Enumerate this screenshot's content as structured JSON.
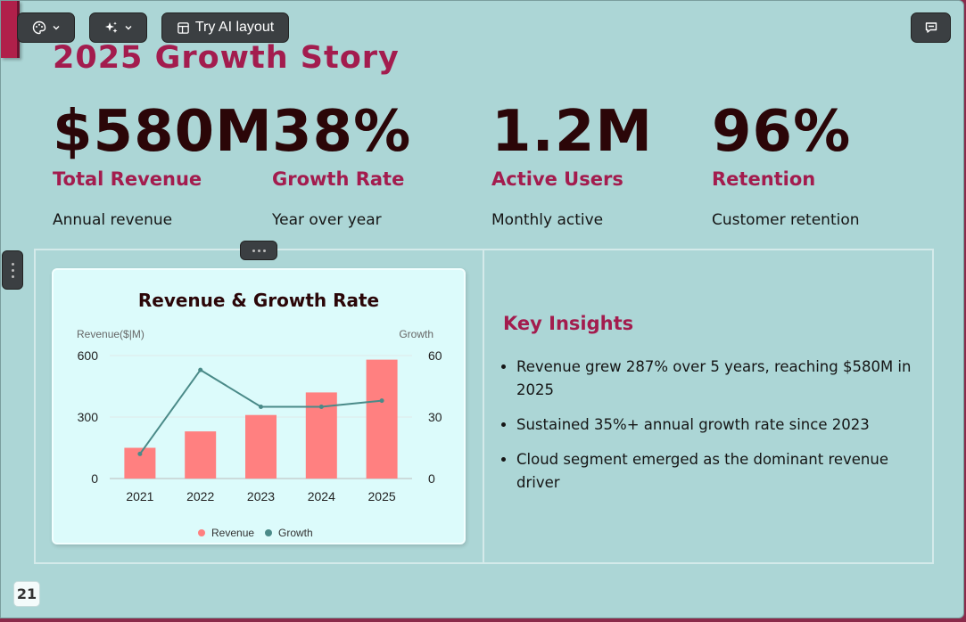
{
  "toolbar": {
    "theme_icon": "palette-icon",
    "ai_icon": "sparkles-icon",
    "layout_label": "Try AI layout",
    "layout_icon": "layout-icon",
    "comment_icon": "comment-icon"
  },
  "slide": {
    "title": "2025 Growth Story",
    "page_number": "21"
  },
  "kpis": [
    {
      "value": "$580M",
      "label": "Total Revenue",
      "sub": "Annual revenue"
    },
    {
      "value": "38%",
      "label": "Growth Rate",
      "sub": "Year over year"
    },
    {
      "value": "1.2M",
      "label": "Active Users",
      "sub": "Monthly active"
    },
    {
      "value": "96%",
      "label": "Retention",
      "sub": "Customer retention"
    }
  ],
  "insights": {
    "title": "Key Insights",
    "items": [
      "Revenue grew 287% over 5 years, reaching $580M in 2025",
      "Sustained 35%+ annual growth rate since 2023",
      "Cloud segment emerged as the dominant revenue driver"
    ]
  },
  "colors": {
    "accent": "#a31c4e",
    "kpi_value": "#2b0608",
    "background": "#acd6d6",
    "bar": "#ff8080",
    "line": "#4a8a88"
  },
  "chart_data": {
    "type": "bar",
    "title": "Revenue & Growth Rate",
    "ylabel": "Revenue($|M)",
    "y2label": "Growth",
    "categories": [
      "2021",
      "2022",
      "2023",
      "2024",
      "2025"
    ],
    "ylim": [
      0,
      600
    ],
    "y2lim": [
      0,
      60
    ],
    "yticks": [
      "0",
      "300",
      "600"
    ],
    "y2ticks": [
      "0",
      "30",
      "60"
    ],
    "grid": true,
    "legend": "bottom",
    "series": [
      {
        "name": "Revenue",
        "type": "bar",
        "axis": "left",
        "values": [
          150,
          230,
          310,
          420,
          580
        ]
      },
      {
        "name": "Growth",
        "type": "line",
        "axis": "right",
        "values": [
          12,
          53,
          35,
          35,
          38
        ]
      }
    ]
  }
}
